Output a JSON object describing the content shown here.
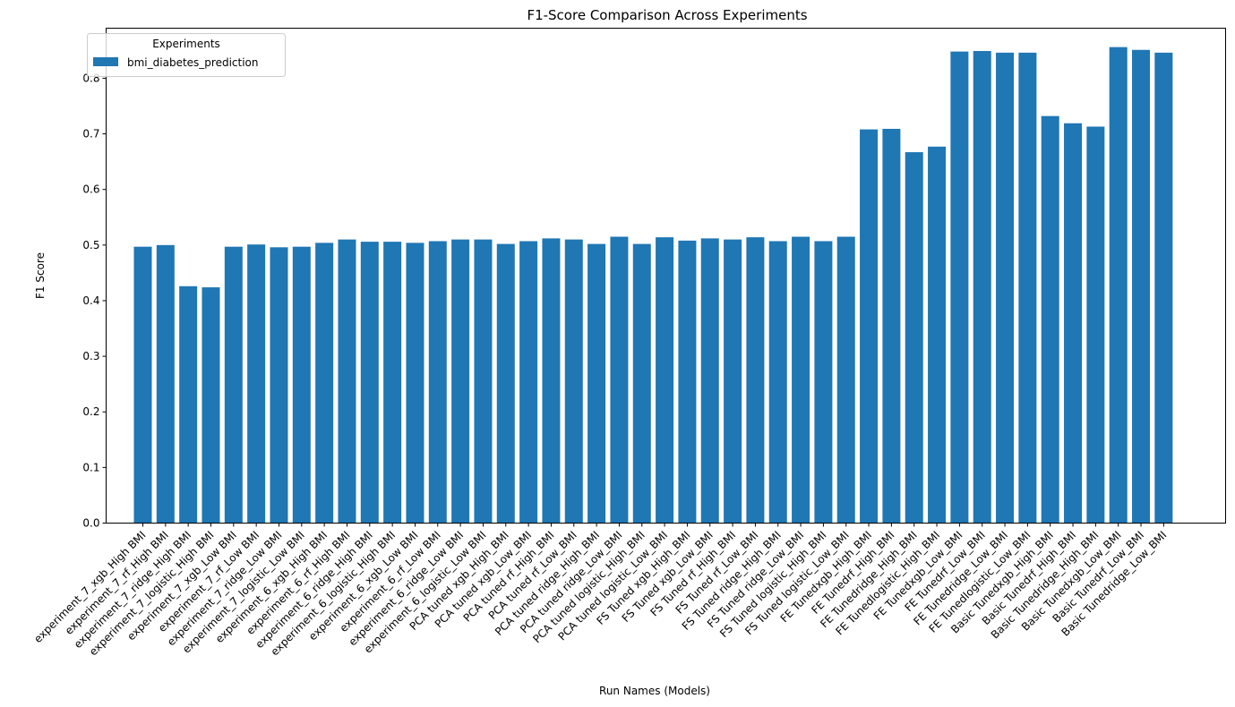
{
  "chart_data": {
    "type": "bar",
    "title": "F1-Score Comparison Across Experiments",
    "xlabel": "Run Names (Models)",
    "ylabel": "F1 Score",
    "ylim": [
      0,
      0.89
    ],
    "yticks": [
      "0.0",
      "0.1",
      "0.2",
      "0.3",
      "0.4",
      "0.5",
      "0.6",
      "0.7",
      "0.8"
    ],
    "grid": false,
    "legend": {
      "title": "Experiments",
      "placement": "top-left"
    },
    "bar_color": "#1f77b4",
    "categories": [
      "experiment_7_xgb_High BMI",
      "experiment_7_rf_High BMI",
      "experiment_7_ridge_High BMI",
      "experiment_7_logistic_High BMI",
      "experiment_7_xgb_Low BMI",
      "experiment_7_rf_Low BMI",
      "experiment_7_ridge_Low BMI",
      "experiment_7_logistic_Low BMI",
      "experiment_6_xgb_High BMI",
      "experiment_6_rf_High BMI",
      "experiment_6_ridge_High BMI",
      "experiment_6_logistic_High BMI",
      "experiment_6_xgb_Low BMI",
      "experiment_6_rf_Low BMI",
      "experiment_6_ridge_Low BMI",
      "experiment_6_logistic_Low BMI",
      "PCA tuned xgb_High_BMI",
      "PCA tuned xgb_Low_BMI",
      "PCA tuned rf_High_BMI",
      "PCA tuned rf_Low_BMI",
      "PCA tuned ridge_High_BMI",
      "PCA tuned ridge_Low_BMI",
      "PCA tuned logistic_High_BMI",
      "PCA tuned logistic_Low_BMI",
      "FS Tuned xgb_High_BMI",
      "FS Tuned xgb_Low_BMI",
      "FS Tuned rf_High_BMI",
      "FS Tuned rf_Low_BMI",
      "FS Tuned ridge_High_BMI",
      "FS Tuned ridge_Low_BMI",
      "FS Tuned logistic_High_BMI",
      "FS Tuned logistic_Low_BMI",
      "FE Tunedxgb_High_BMI",
      "FE Tunedrf_High_BMI",
      "FE Tunedridge_High_BMI",
      "FE Tunedlogistic_High_BMI",
      "FE Tunedxgb_Low_BMI",
      "FE Tunedrf_Low_BMI",
      "FE Tunedridge_Low_BMI",
      "FE Tunedlogistic_Low_BMI",
      "Basic Tunedxgb_High_BMI",
      "Basic Tunedrf_High_BMI",
      "Basic Tunedridge_High_BMI",
      "Basic Tunedxgb_Low_BMI",
      "Basic Tunedrf_Low_BMI",
      "Basic Tunedridge_Low_BMI"
    ],
    "series": [
      {
        "name": "bmi_diabetes_prediction",
        "values": [
          0.497,
          0.5,
          0.426,
          0.424,
          0.497,
          0.501,
          0.496,
          0.497,
          0.504,
          0.51,
          0.506,
          0.506,
          0.504,
          0.507,
          0.51,
          0.51,
          0.502,
          0.507,
          0.512,
          0.51,
          0.502,
          0.515,
          0.502,
          0.514,
          0.508,
          0.512,
          0.51,
          0.514,
          0.507,
          0.515,
          0.507,
          0.515,
          0.708,
          0.709,
          0.667,
          0.677,
          0.848,
          0.849,
          0.846,
          0.846,
          0.732,
          0.719,
          0.713,
          0.856,
          0.851,
          0.846
        ]
      }
    ]
  }
}
